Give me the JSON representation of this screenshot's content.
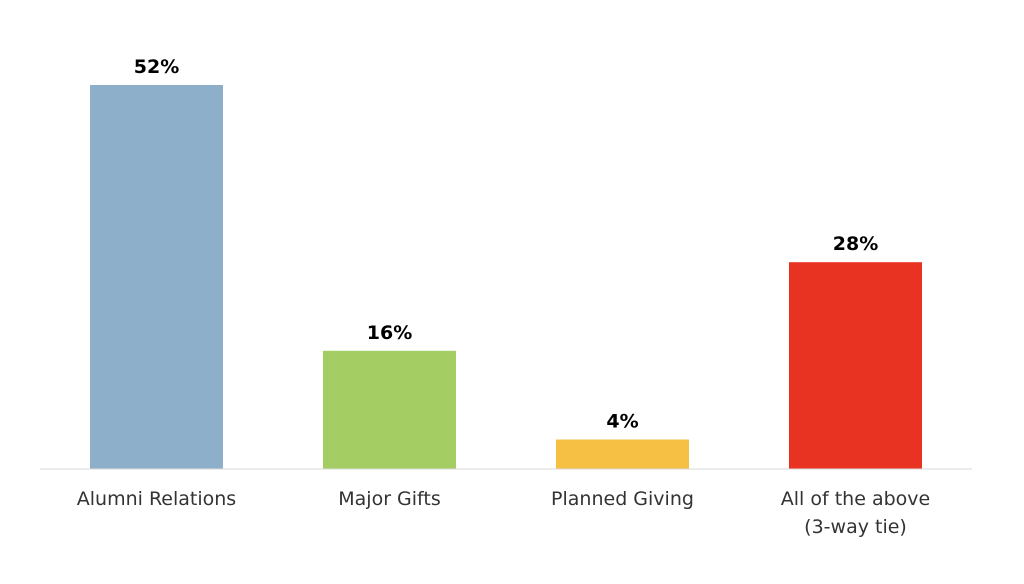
{
  "chart_data": {
    "type": "bar",
    "categories": [
      "Alumni Relations",
      "Major Gifts",
      "Planned Giving",
      "All of the above (3-way tie)"
    ],
    "values": [
      52,
      16,
      4,
      28
    ],
    "value_labels": [
      "52%",
      "16%",
      "4%",
      "28%"
    ],
    "colors": [
      "#8eafc9",
      "#a4cd64",
      "#f5c043",
      "#e83323"
    ],
    "ylim": [
      0,
      52
    ],
    "grid": false,
    "legend": "none"
  }
}
